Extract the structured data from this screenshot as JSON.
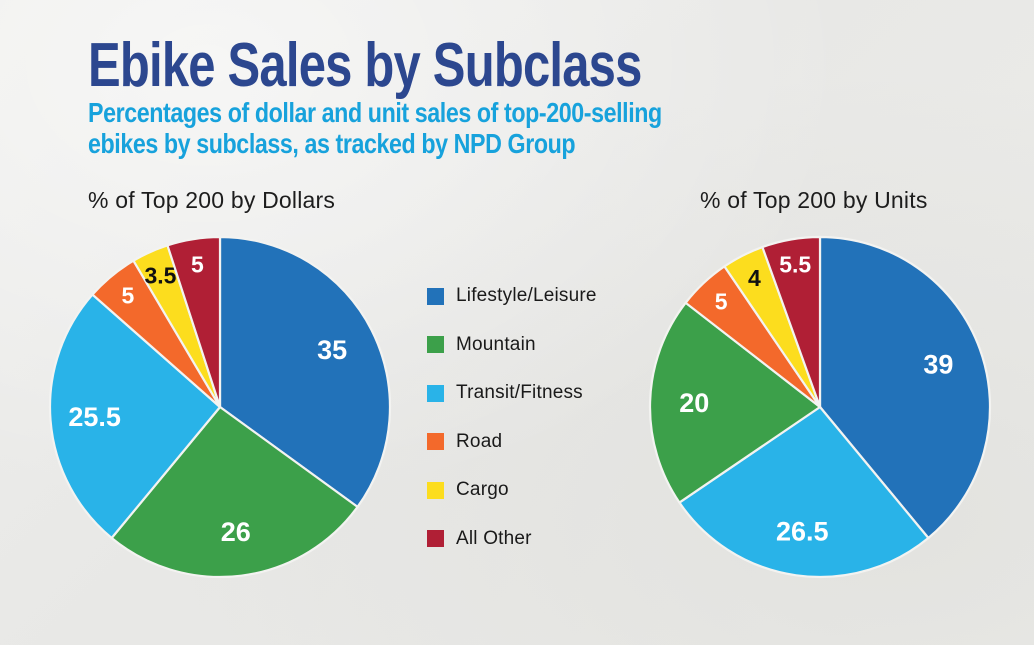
{
  "header": {
    "title": "Ebike Sales by Subclass",
    "subtitle_line1": "Percentages of dollar and unit sales of top-200-selling",
    "subtitle_line2": "ebikes by subclass, as tracked by NPD Group",
    "title_color": "#2c478f",
    "subtitle_color": "#17a2dc"
  },
  "palette": {
    "lifestyle_leisure": "#2272b9",
    "mountain": "#3ca04a",
    "transit_fitness": "#29b3e8",
    "road": "#f3692b",
    "cargo": "#fcdd1e",
    "all_other": "#b01f35",
    "background": "#eaeae8"
  },
  "legend": {
    "items": [
      {
        "label": "Lifestyle/Leisure",
        "color": "#2272b9"
      },
      {
        "label": "Mountain",
        "color": "#3ca04a"
      },
      {
        "label": "Transit/Fitness",
        "color": "#29b3e8"
      },
      {
        "label": "Road",
        "color": "#f3692b"
      },
      {
        "label": "Cargo",
        "color": "#fcdd1e"
      },
      {
        "label": "All Other",
        "color": "#b01f35"
      }
    ]
  },
  "chart_data": [
    {
      "type": "pie",
      "title": "% of Top 200 by Dollars",
      "start_angle_deg": 0,
      "direction": "clockwise",
      "slices": [
        {
          "label": "Lifestyle/Leisure",
          "value": 35,
          "display": "35",
          "color": "#2272b9",
          "value_color": "#ffffff"
        },
        {
          "label": "Mountain",
          "value": 26,
          "display": "26",
          "color": "#3ca04a",
          "value_color": "#ffffff"
        },
        {
          "label": "Transit/Fitness",
          "value": 25.5,
          "display": "25.5",
          "color": "#29b3e8",
          "value_color": "#ffffff"
        },
        {
          "label": "Road",
          "value": 5,
          "display": "5",
          "color": "#f3692b",
          "value_color": "#ffffff"
        },
        {
          "label": "Cargo",
          "value": 3.5,
          "display": "3.5",
          "color": "#fcdd1e",
          "value_color": "#111111"
        },
        {
          "label": "All Other",
          "value": 5,
          "display": "5",
          "color": "#b01f35",
          "value_color": "#ffffff"
        }
      ]
    },
    {
      "type": "pie",
      "title": "% of Top 200 by Units",
      "start_angle_deg": 0,
      "direction": "clockwise",
      "slices": [
        {
          "label": "Lifestyle/Leisure",
          "value": 39,
          "display": "39",
          "color": "#2272b9",
          "value_color": "#ffffff"
        },
        {
          "label": "Transit/Fitness",
          "value": 26.5,
          "display": "26.5",
          "color": "#29b3e8",
          "value_color": "#ffffff"
        },
        {
          "label": "Mountain",
          "value": 20,
          "display": "20",
          "color": "#3ca04a",
          "value_color": "#ffffff"
        },
        {
          "label": "Road",
          "value": 5,
          "display": "5",
          "color": "#f3692b",
          "value_color": "#ffffff"
        },
        {
          "label": "Cargo",
          "value": 4,
          "display": "4",
          "color": "#fcdd1e",
          "value_color": "#111111"
        },
        {
          "label": "All Other",
          "value": 5.5,
          "display": "5.5",
          "color": "#b01f35",
          "value_color": "#ffffff"
        }
      ]
    }
  ]
}
